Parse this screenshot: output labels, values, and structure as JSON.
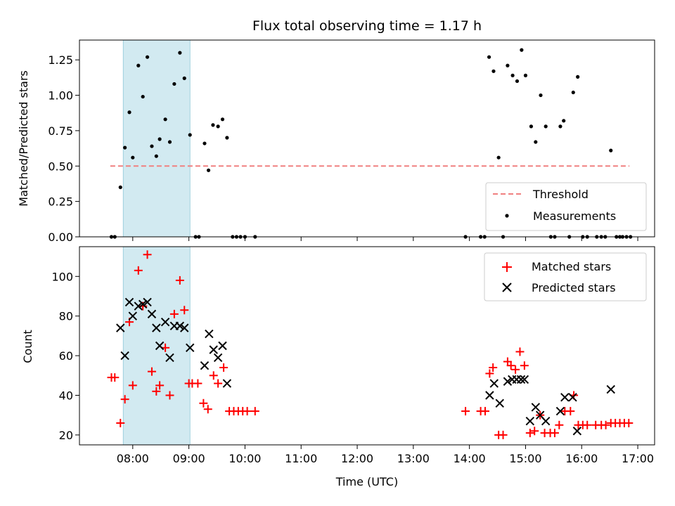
{
  "chart_data": {
    "type": "scatter",
    "title": "Flux total observing time = 1.17 h",
    "xlabel": "Time (UTC)",
    "x_unit": "hours UTC",
    "xlim": [
      7.05,
      17.3
    ],
    "x_ticks": [
      {
        "value": 8,
        "label": "08:00"
      },
      {
        "value": 9,
        "label": "09:00"
      },
      {
        "value": 10,
        "label": "10:00"
      },
      {
        "value": 11,
        "label": "11:00"
      },
      {
        "value": 12,
        "label": "12:00"
      },
      {
        "value": 13,
        "label": "13:00"
      },
      {
        "value": 14,
        "label": "14:00"
      },
      {
        "value": 15,
        "label": "15:00"
      },
      {
        "value": 16,
        "label": "16:00"
      },
      {
        "value": 17,
        "label": "17:00"
      }
    ],
    "highlight_span": {
      "x0": 7.83,
      "x1": 9.02,
      "color": "#add8e6"
    },
    "top_panel": {
      "ylabel": "Matched/Predicted stars",
      "ylim": [
        0,
        1.39
      ],
      "y_ticks": [
        {
          "value": 0.0,
          "label": "0.00"
        },
        {
          "value": 0.25,
          "label": "0.25"
        },
        {
          "value": 0.5,
          "label": "0.50"
        },
        {
          "value": 0.75,
          "label": "0.75"
        },
        {
          "value": 1.0,
          "label": "1.00"
        },
        {
          "value": 1.25,
          "label": "1.25"
        }
      ],
      "threshold": {
        "name": "Threshold",
        "value": 0.5,
        "x_range": [
          7.6,
          16.85
        ],
        "color": "#f08080"
      },
      "measurements": {
        "name": "Measurements",
        "color": "#000000",
        "points": [
          [
            7.62,
            0.0
          ],
          [
            7.68,
            0.0
          ],
          [
            7.78,
            0.35
          ],
          [
            7.86,
            0.63
          ],
          [
            7.94,
            0.88
          ],
          [
            8.0,
            0.56
          ],
          [
            8.1,
            1.21
          ],
          [
            8.18,
            0.99
          ],
          [
            8.26,
            1.27
          ],
          [
            8.34,
            0.64
          ],
          [
            8.42,
            0.57
          ],
          [
            8.48,
            0.69
          ],
          [
            8.58,
            0.83
          ],
          [
            8.66,
            0.67
          ],
          [
            8.74,
            1.08
          ],
          [
            8.84,
            1.3
          ],
          [
            8.92,
            1.12
          ],
          [
            9.02,
            0.72
          ],
          [
            9.12,
            0.0
          ],
          [
            9.18,
            0.0
          ],
          [
            9.28,
            0.66
          ],
          [
            9.35,
            0.47
          ],
          [
            9.43,
            0.79
          ],
          [
            9.52,
            0.78
          ],
          [
            9.6,
            0.83
          ],
          [
            9.68,
            0.7
          ],
          [
            9.78,
            0.0
          ],
          [
            9.85,
            0.0
          ],
          [
            9.92,
            0.0
          ],
          [
            10.0,
            0.0
          ],
          [
            10.18,
            0.0
          ],
          [
            13.93,
            0.0
          ],
          [
            14.2,
            0.0
          ],
          [
            14.27,
            0.0
          ],
          [
            14.35,
            1.27
          ],
          [
            14.43,
            1.17
          ],
          [
            14.52,
            0.56
          ],
          [
            14.6,
            0.0
          ],
          [
            14.68,
            1.21
          ],
          [
            14.77,
            1.14
          ],
          [
            14.85,
            1.1
          ],
          [
            14.93,
            1.32
          ],
          [
            15.0,
            1.14
          ],
          [
            15.1,
            0.78
          ],
          [
            15.18,
            0.67
          ],
          [
            15.27,
            1.0
          ],
          [
            15.36,
            0.78
          ],
          [
            15.45,
            0.0
          ],
          [
            15.52,
            0.0
          ],
          [
            15.62,
            0.78
          ],
          [
            15.68,
            0.82
          ],
          [
            15.78,
            0.0
          ],
          [
            15.85,
            1.02
          ],
          [
            15.93,
            1.13
          ],
          [
            16.02,
            0.0
          ],
          [
            16.1,
            0.0
          ],
          [
            16.27,
            0.0
          ],
          [
            16.35,
            0.0
          ],
          [
            16.42,
            0.0
          ],
          [
            16.52,
            0.61
          ],
          [
            16.62,
            0.0
          ],
          [
            16.68,
            0.0
          ],
          [
            16.73,
            0.0
          ],
          [
            16.8,
            0.0
          ],
          [
            16.87,
            0.0
          ]
        ]
      },
      "legend": {
        "position": "bottom-right",
        "entries": [
          "Threshold",
          "Measurements"
        ]
      }
    },
    "bottom_panel": {
      "ylabel": "Count",
      "ylim": [
        15,
        115
      ],
      "y_ticks": [
        {
          "value": 20,
          "label": "20"
        },
        {
          "value": 40,
          "label": "40"
        },
        {
          "value": 60,
          "label": "60"
        },
        {
          "value": 80,
          "label": "80"
        },
        {
          "value": 100,
          "label": "100"
        }
      ],
      "series": [
        {
          "name": "Matched stars",
          "marker": "+",
          "color": "#ff0000",
          "points": [
            [
              7.62,
              49
            ],
            [
              7.68,
              49
            ],
            [
              7.78,
              26
            ],
            [
              7.86,
              38
            ],
            [
              7.94,
              77
            ],
            [
              8.0,
              45
            ],
            [
              8.1,
              103
            ],
            [
              8.18,
              85
            ],
            [
              8.26,
              111
            ],
            [
              8.34,
              52
            ],
            [
              8.42,
              42
            ],
            [
              8.48,
              45
            ],
            [
              8.58,
              64
            ],
            [
              8.66,
              40
            ],
            [
              8.74,
              81
            ],
            [
              8.84,
              98
            ],
            [
              8.92,
              83
            ],
            [
              9.0,
              46
            ],
            [
              9.06,
              46
            ],
            [
              9.16,
              46
            ],
            [
              9.26,
              36
            ],
            [
              9.34,
              33
            ],
            [
              9.44,
              50
            ],
            [
              9.52,
              46
            ],
            [
              9.62,
              54
            ],
            [
              9.72,
              32
            ],
            [
              9.8,
              32
            ],
            [
              9.88,
              32
            ],
            [
              9.96,
              32
            ],
            [
              10.04,
              32
            ],
            [
              10.18,
              32
            ],
            [
              13.93,
              32
            ],
            [
              14.2,
              32
            ],
            [
              14.28,
              32
            ],
            [
              14.36,
              51
            ],
            [
              14.42,
              54
            ],
            [
              14.52,
              20
            ],
            [
              14.6,
              20
            ],
            [
              14.68,
              57
            ],
            [
              14.74,
              55
            ],
            [
              14.82,
              53
            ],
            [
              14.9,
              62
            ],
            [
              14.98,
              55
            ],
            [
              15.08,
              21
            ],
            [
              15.16,
              22
            ],
            [
              15.26,
              30
            ],
            [
              15.34,
              21
            ],
            [
              15.44,
              21
            ],
            [
              15.52,
              21
            ],
            [
              15.6,
              25
            ],
            [
              15.7,
              32
            ],
            [
              15.8,
              32
            ],
            [
              15.86,
              40
            ],
            [
              15.94,
              25
            ],
            [
              16.02,
              25
            ],
            [
              16.1,
              25
            ],
            [
              16.25,
              25
            ],
            [
              16.35,
              25
            ],
            [
              16.43,
              25
            ],
            [
              16.52,
              26
            ],
            [
              16.6,
              26
            ],
            [
              16.68,
              26
            ],
            [
              16.76,
              26
            ],
            [
              16.84,
              26
            ]
          ]
        },
        {
          "name": "Predicted stars",
          "marker": "x",
          "color": "#000000",
          "points": [
            [
              7.78,
              74
            ],
            [
              7.86,
              60
            ],
            [
              7.94,
              87
            ],
            [
              8.0,
              80
            ],
            [
              8.1,
              85
            ],
            [
              8.18,
              86
            ],
            [
              8.26,
              87
            ],
            [
              8.34,
              81
            ],
            [
              8.42,
              74
            ],
            [
              8.48,
              65
            ],
            [
              8.58,
              77
            ],
            [
              8.66,
              59
            ],
            [
              8.74,
              75
            ],
            [
              8.84,
              75
            ],
            [
              8.92,
              74
            ],
            [
              9.02,
              64
            ],
            [
              9.28,
              55
            ],
            [
              9.36,
              71
            ],
            [
              9.44,
              63
            ],
            [
              9.52,
              59
            ],
            [
              9.6,
              65
            ],
            [
              9.68,
              46
            ],
            [
              14.36,
              40
            ],
            [
              14.44,
              46
            ],
            [
              14.54,
              36
            ],
            [
              14.68,
              47
            ],
            [
              14.76,
              48
            ],
            [
              14.84,
              48
            ],
            [
              14.92,
              48
            ],
            [
              14.98,
              48
            ],
            [
              15.08,
              27
            ],
            [
              15.18,
              34
            ],
            [
              15.26,
              30
            ],
            [
              15.36,
              27
            ],
            [
              15.62,
              32
            ],
            [
              15.7,
              39
            ],
            [
              15.84,
              39
            ],
            [
              15.92,
              22
            ],
            [
              16.52,
              43
            ]
          ]
        }
      ],
      "legend": {
        "position": "top-right",
        "entries": [
          "Matched stars",
          "Predicted stars"
        ]
      }
    }
  }
}
